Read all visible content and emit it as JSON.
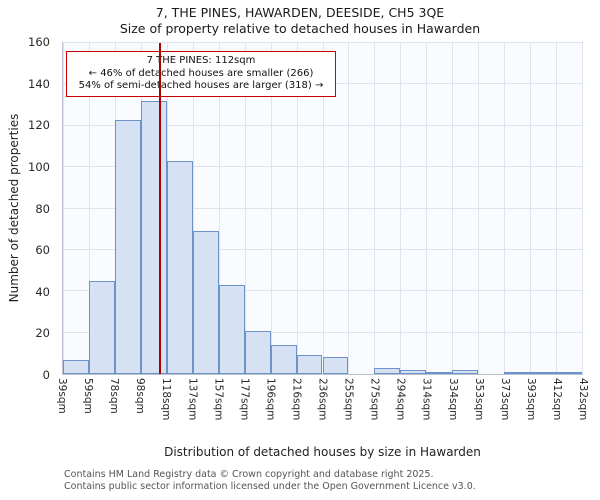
{
  "title": "7, THE PINES, HAWARDEN, DEESIDE, CH5 3QE",
  "subtitle": "Size of property relative to detached houses in Hawarden",
  "footer": {
    "line1": "Contains HM Land Registry data © Crown copyright and database right 2025.",
    "line2": "Contains public sector information licensed under the Open Government Licence v3.0."
  },
  "chart_data": {
    "type": "bar",
    "title": "7, THE PINES, HAWARDEN, DEESIDE, CH5 3QE — Size of property relative to detached houses in Hawarden",
    "xlabel": "Distribution of detached houses by size in Hawarden",
    "ylabel": "Number of detached properties",
    "categories": [
      "39sqm",
      "59sqm",
      "78sqm",
      "98sqm",
      "118sqm",
      "137sqm",
      "157sqm",
      "177sqm",
      "196sqm",
      "216sqm",
      "236sqm",
      "255sqm",
      "275sqm",
      "294sqm",
      "314sqm",
      "334sqm",
      "353sqm",
      "373sqm",
      "393sqm",
      "412sqm",
      "432sqm"
    ],
    "bin_edges_sqm": [
      39,
      59,
      78,
      98,
      118,
      137,
      157,
      177,
      196,
      216,
      236,
      255,
      275,
      294,
      314,
      334,
      353,
      373,
      393,
      412,
      432
    ],
    "values": [
      7,
      45,
      123,
      132,
      103,
      69,
      43,
      21,
      14,
      9,
      8,
      0,
      3,
      2,
      1,
      2,
      0,
      1,
      1,
      1
    ],
    "ylim": [
      0,
      160
    ],
    "y_ticks": [
      0,
      20,
      40,
      60,
      80,
      100,
      120,
      140,
      160
    ],
    "x_min": 39,
    "x_max": 432,
    "grid": true,
    "legend": "none",
    "marker": {
      "value": 112,
      "color": "#aa0000"
    },
    "annotation": {
      "line1": "7 THE PINES: 112sqm",
      "line2": "← 46% of detached houses are smaller (266)",
      "line3": "54% of semi-detached houses are larger (318) →"
    },
    "colors": {
      "bar_fill": "#d6e1f3",
      "bar_border": "#6b93c9",
      "grid": "#dde3ef",
      "marker": "#aa0000",
      "annotation_border": "#cc0000"
    }
  }
}
